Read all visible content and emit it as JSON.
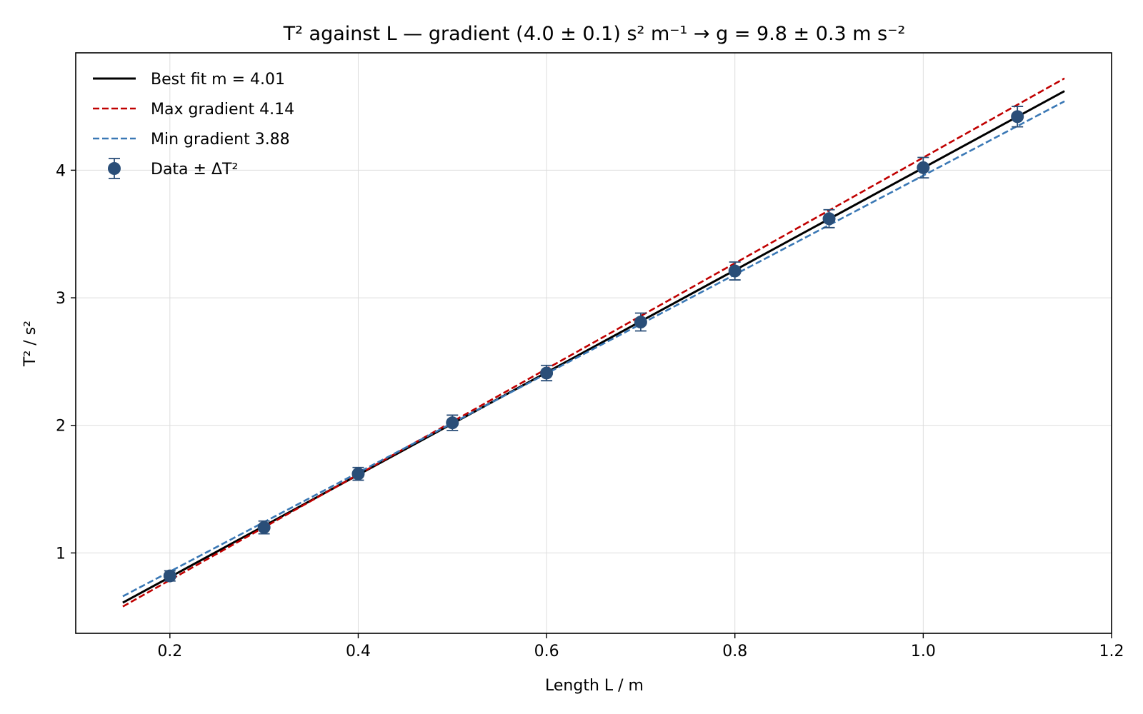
{
  "chart_data": {
    "type": "scatter",
    "title": "T² against L — gradient (4.0 ± 0.1) s² m⁻¹  →  g = 9.8 ± 0.3 m s⁻²",
    "xlabel": "Length L / m",
    "ylabel": "T² / s²",
    "xlim": [
      0.1,
      1.2
    ],
    "ylim": [
      0.37,
      4.92
    ],
    "x_ticks": [
      0.2,
      0.4,
      0.6,
      0.8,
      1.0,
      1.2
    ],
    "x_tick_labels": [
      "0.2",
      "0.4",
      "0.6",
      "0.8",
      "1.0",
      "1.2"
    ],
    "y_ticks": [
      1,
      2,
      3,
      4
    ],
    "y_tick_labels": [
      "1",
      "2",
      "3",
      "4"
    ],
    "grid": true,
    "legend_position": "top-left",
    "series": [
      {
        "kind": "errorbar",
        "name": "Data ± ΔT²",
        "color": "#2a4e78",
        "x": [
          0.2,
          0.3,
          0.4,
          0.5,
          0.6,
          0.7,
          0.8,
          0.9,
          1.0,
          1.1
        ],
        "y": [
          0.82,
          1.2,
          1.62,
          2.02,
          2.41,
          2.81,
          3.21,
          3.62,
          4.02,
          4.42
        ],
        "yerr": [
          0.04,
          0.05,
          0.05,
          0.06,
          0.06,
          0.07,
          0.07,
          0.07,
          0.08,
          0.08
        ]
      },
      {
        "kind": "line",
        "name": "Best fit  m = 4.01",
        "color": "#000000",
        "dash": "solid",
        "x": [
          0.15,
          1.15
        ],
        "y": [
          0.61,
          4.62
        ]
      },
      {
        "kind": "line",
        "name": "Max gradient  4.14",
        "color": "#c00000",
        "dash": "dashed",
        "x": [
          0.15,
          1.15
        ],
        "y": [
          0.58,
          4.72
        ]
      },
      {
        "kind": "line",
        "name": "Min gradient  3.88",
        "color": "#3a78b5",
        "dash": "dashed",
        "x": [
          0.15,
          1.15
        ],
        "y": [
          0.66,
          4.54
        ]
      }
    ],
    "legend_order": [
      1,
      2,
      3,
      0
    ]
  }
}
